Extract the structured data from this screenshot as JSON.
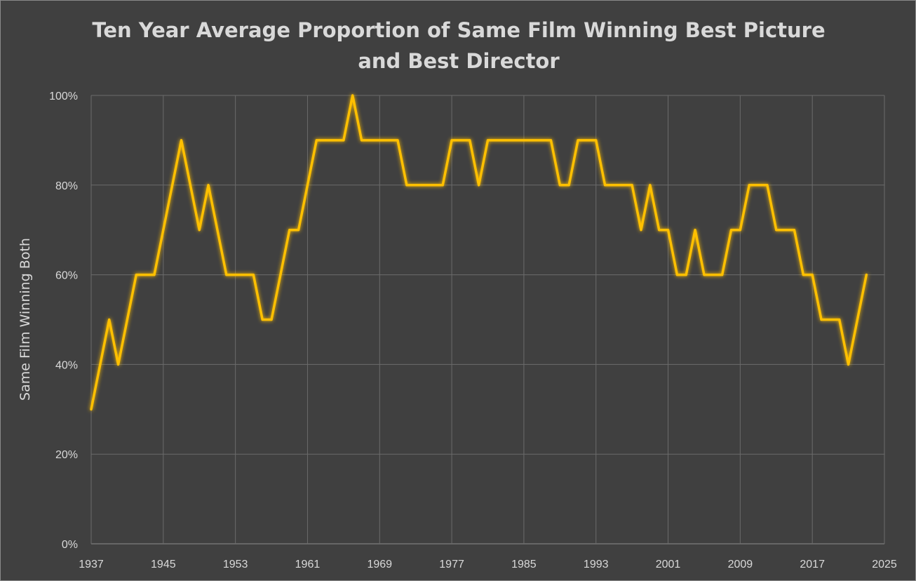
{
  "chart_data": {
    "type": "line",
    "title_lines": [
      "Ten Year Average Proportion of Same Film Winning Best Picture",
      "and Best Director"
    ],
    "xlabel": "",
    "ylabel": "Same Film Winning Both",
    "xlim": [
      1937,
      2025
    ],
    "ylim": [
      0,
      100
    ],
    "x_ticks": [
      "1937",
      "1945",
      "1953",
      "1961",
      "1969",
      "1977",
      "1985",
      "1993",
      "2001",
      "2009",
      "2017",
      "2025"
    ],
    "x_tick_values": [
      1937,
      1945,
      1953,
      1961,
      1969,
      1977,
      1985,
      1993,
      2001,
      2009,
      2017,
      2025
    ],
    "y_ticks": [
      "0%",
      "20%",
      "40%",
      "60%",
      "80%",
      "100%"
    ],
    "y_tick_values": [
      0,
      20,
      40,
      60,
      80,
      100
    ],
    "grid": true,
    "colors": {
      "background": "#404040",
      "line": "#ffc000",
      "grid": "#6b6b6b",
      "text": "#d9d9d9"
    },
    "series": [
      {
        "name": "Ten Year Average",
        "x": [
          1937,
          1938,
          1939,
          1940,
          1941,
          1942,
          1943,
          1944,
          1945,
          1946,
          1947,
          1948,
          1949,
          1950,
          1951,
          1952,
          1953,
          1954,
          1955,
          1956,
          1957,
          1958,
          1959,
          1960,
          1961,
          1962,
          1963,
          1964,
          1965,
          1966,
          1967,
          1968,
          1969,
          1970,
          1971,
          1972,
          1973,
          1974,
          1975,
          1976,
          1977,
          1978,
          1979,
          1980,
          1981,
          1982,
          1983,
          1984,
          1985,
          1986,
          1987,
          1988,
          1989,
          1990,
          1991,
          1992,
          1993,
          1994,
          1995,
          1996,
          1997,
          1998,
          1999,
          2000,
          2001,
          2002,
          2003,
          2004,
          2005,
          2006,
          2007,
          2008,
          2009,
          2010,
          2011,
          2012,
          2013,
          2014,
          2015,
          2016,
          2017,
          2018,
          2019,
          2020,
          2021,
          2022,
          2023
        ],
        "values": [
          30,
          40,
          50,
          40,
          50,
          60,
          60,
          60,
          70,
          80,
          90,
          80,
          70,
          80,
          70,
          60,
          60,
          60,
          60,
          50,
          50,
          60,
          70,
          70,
          80,
          90,
          90,
          90,
          90,
          100,
          90,
          90,
          90,
          90,
          90,
          80,
          80,
          80,
          80,
          80,
          90,
          90,
          90,
          80,
          90,
          90,
          90,
          90,
          90,
          90,
          90,
          90,
          80,
          80,
          90,
          90,
          90,
          80,
          80,
          80,
          80,
          70,
          80,
          70,
          70,
          60,
          60,
          70,
          60,
          60,
          60,
          70,
          70,
          80,
          80,
          80,
          70,
          70,
          70,
          60,
          60,
          50,
          50,
          50,
          40,
          50,
          60
        ]
      }
    ]
  }
}
